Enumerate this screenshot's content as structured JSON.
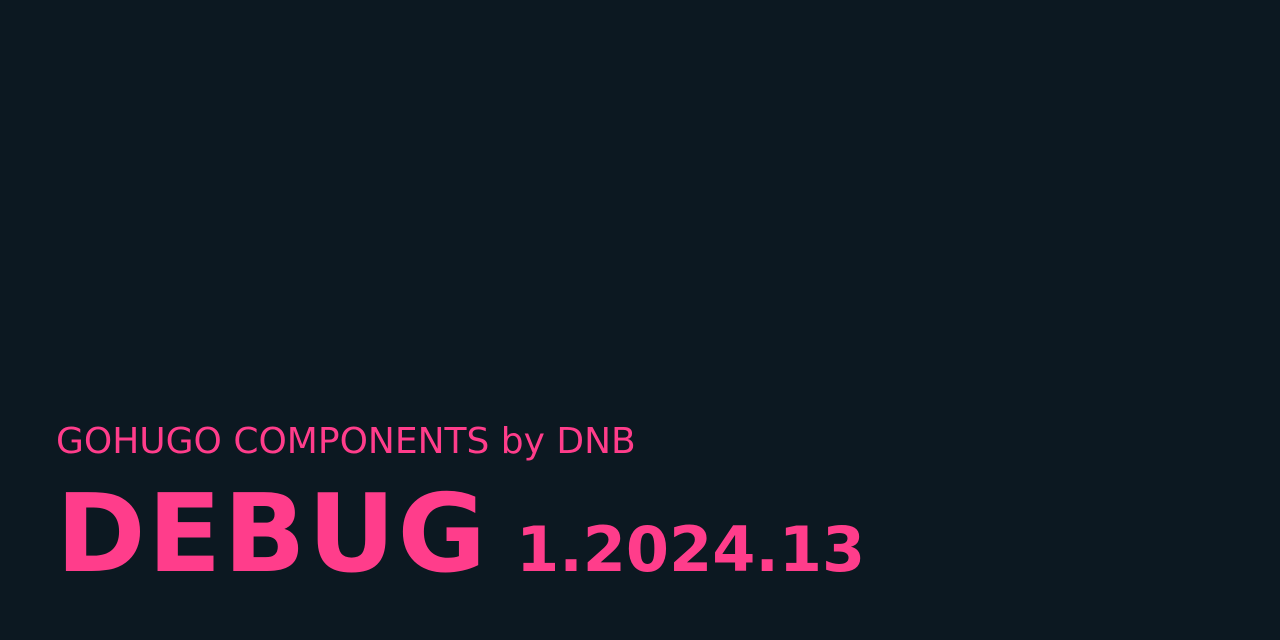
{
  "card": {
    "subtitle": "GOHUGO COMPONENTS by DNB",
    "title": "DEBUG",
    "version": "1.2024.13"
  },
  "colors": {
    "background": "#0c1821",
    "accent": "#ff3d8b"
  }
}
